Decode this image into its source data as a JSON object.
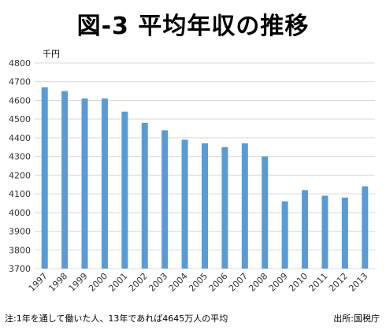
{
  "chart_data": {
    "type": "bar",
    "title": "図-3 平均年収の推移",
    "ylabel": "千円",
    "categories": [
      "1997",
      "1998",
      "1999",
      "2000",
      "2001",
      "2002",
      "2003",
      "2004",
      "2005",
      "2006",
      "2007",
      "2008",
      "2009",
      "2010",
      "2011",
      "2012",
      "2013"
    ],
    "values": [
      4670,
      4650,
      4610,
      4610,
      4540,
      4480,
      4440,
      4390,
      4370,
      4350,
      4370,
      4300,
      4060,
      4120,
      4090,
      4080,
      4140
    ],
    "ylim": [
      3700,
      4800
    ],
    "yticks": [
      3700,
      3800,
      3900,
      4000,
      4100,
      4200,
      4300,
      4400,
      4500,
      4600,
      4700,
      4800
    ],
    "grid": true,
    "bar_color": "#5B9BD5",
    "grid_color": "#D9D9D9",
    "note": "注:1年を通して働いた人、13年であれば4645万人の平均",
    "source": "出所:国税庁"
  }
}
